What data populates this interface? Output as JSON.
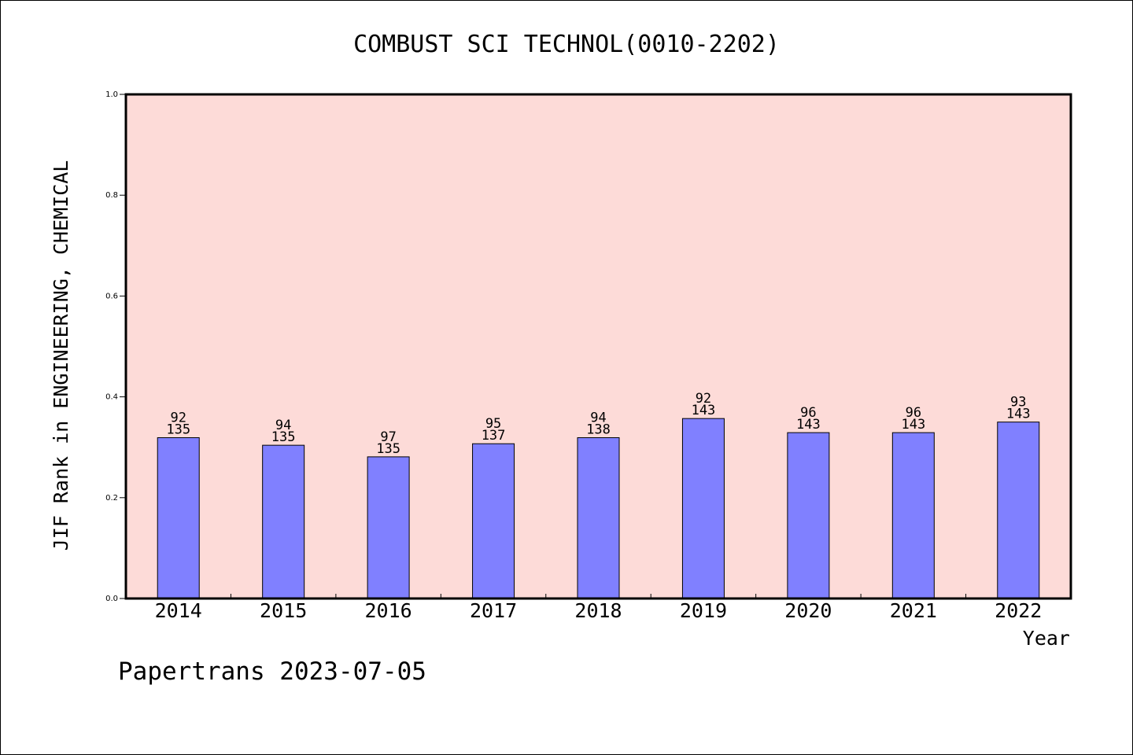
{
  "chart_data": {
    "type": "bar",
    "title": "COMBUST SCI TECHNOL(0010-2202)",
    "xlabel": "Year",
    "ylabel": "JIF Rank in ENGINEERING, CHEMICAL",
    "ylim": [
      0,
      1.0
    ],
    "y_ticks": [
      "0.0",
      "0.2",
      "0.4",
      "0.6",
      "0.8",
      "1.0"
    ],
    "categories": [
      "2014",
      "2015",
      "2016",
      "2017",
      "2018",
      "2019",
      "2020",
      "2021",
      "2022"
    ],
    "values": [
      0.319,
      0.304,
      0.281,
      0.307,
      0.319,
      0.357,
      0.329,
      0.329,
      0.35
    ],
    "rank": [
      "92",
      "94",
      "97",
      "95",
      "94",
      "92",
      "96",
      "96",
      "93"
    ],
    "total": [
      "135",
      "135",
      "135",
      "137",
      "138",
      "143",
      "143",
      "143",
      "143"
    ],
    "grid": false,
    "colors": {
      "plot_background": "#fddbd8",
      "bar": "#8080ff",
      "bar_edge": "#000000"
    }
  },
  "footer": "Papertrans 2023-07-05"
}
